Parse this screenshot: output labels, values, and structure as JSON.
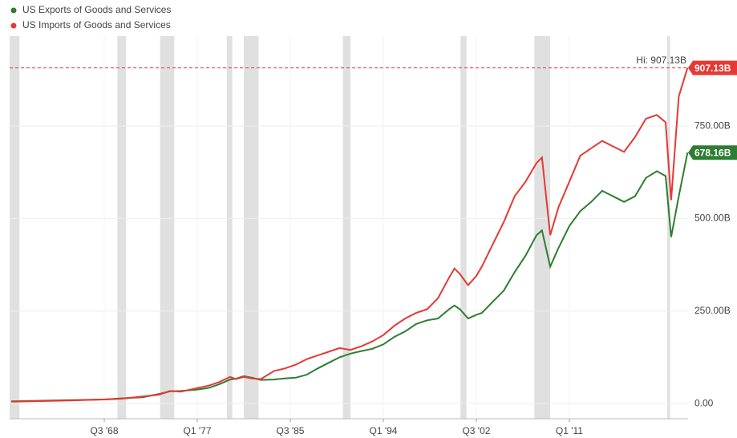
{
  "chart_data": {
    "type": "line",
    "x": [
      1960,
      1965,
      1968.5,
      1970,
      1972,
      1973.5,
      1974.5,
      1975.5,
      1977,
      1978,
      1979,
      1980,
      1980.5,
      1981.25,
      1982,
      1982.8,
      1984,
      1985,
      1986,
      1987,
      1988,
      1989,
      1990,
      1991,
      1992,
      1993,
      1994,
      1995,
      1996,
      1997,
      1998,
      1999,
      2000,
      2000.5,
      2001,
      2001.75,
      2002.5,
      2003,
      2004,
      2005,
      2006,
      2007,
      2008,
      2008.5,
      2009.25,
      2010,
      2011,
      2012,
      2013,
      2014,
      2015,
      2016,
      2017,
      2018,
      2019,
      2019.8,
      2020.3,
      2021,
      2021.8
    ],
    "series": [
      {
        "name": "US Exports of Goods and Services",
        "color": "#2e7d32",
        "last_label": "678.16B",
        "values": [
          6,
          9,
          11,
          14,
          17,
          26,
          33,
          34,
          38,
          42,
          52,
          65,
          67,
          74,
          70,
          64,
          65,
          68,
          70,
          78,
          95,
          110,
          125,
          135,
          142,
          148,
          160,
          180,
          195,
          215,
          225,
          230,
          255,
          265,
          255,
          230,
          240,
          245,
          275,
          305,
          355,
          400,
          455,
          468,
          370,
          420,
          480,
          520,
          545,
          575,
          560,
          545,
          560,
          610,
          628,
          615,
          450,
          560,
          678.16
        ]
      },
      {
        "name": "US Imports of Goods and Services",
        "color": "#e53935",
        "last_label": "907.13B",
        "values": [
          5,
          8,
          11,
          13,
          19,
          24,
          34,
          32,
          42,
          48,
          58,
          72,
          66,
          72,
          68,
          66,
          88,
          95,
          105,
          120,
          130,
          140,
          150,
          145,
          155,
          168,
          185,
          210,
          230,
          245,
          255,
          285,
          340,
          365,
          350,
          320,
          345,
          370,
          430,
          490,
          560,
          600,
          650,
          665,
          455,
          530,
          600,
          670,
          690,
          710,
          695,
          680,
          720,
          770,
          780,
          760,
          550,
          830,
          907.13
        ]
      }
    ],
    "recessions": [
      [
        1959.85,
        1960.75
      ],
      [
        1969.7,
        1970.5
      ],
      [
        1973.6,
        1974.9
      ],
      [
        1979.7,
        1980.2
      ],
      [
        1981.25,
        1982.6
      ],
      [
        1990.3,
        1991.0
      ],
      [
        2001.05,
        2001.6
      ],
      [
        2007.8,
        2009.25
      ],
      [
        2019.95,
        2020.2
      ]
    ],
    "high": {
      "value": 907.13,
      "label": "Hi: 907.13B"
    },
    "xlim": [
      1959.85,
      2021.85
    ],
    "xticks": [
      {
        "value": 1968.5,
        "label": "Q3 '68"
      },
      {
        "value": 1977,
        "label": "Q1 '77"
      },
      {
        "value": 1985.5,
        "label": "Q3 '85"
      },
      {
        "value": 1994,
        "label": "Q1 '94"
      },
      {
        "value": 2002.5,
        "label": "Q3 '02"
      },
      {
        "value": 2011,
        "label": "Q1 '11"
      }
    ],
    "ylim": [
      -41,
      993
    ],
    "yticks": [
      {
        "value": 0,
        "label": "0.00"
      },
      {
        "value": 250,
        "label": "250.00B"
      },
      {
        "value": 500,
        "label": "500.00B"
      },
      {
        "value": 750,
        "label": "750.00B"
      }
    ],
    "grid": true
  }
}
